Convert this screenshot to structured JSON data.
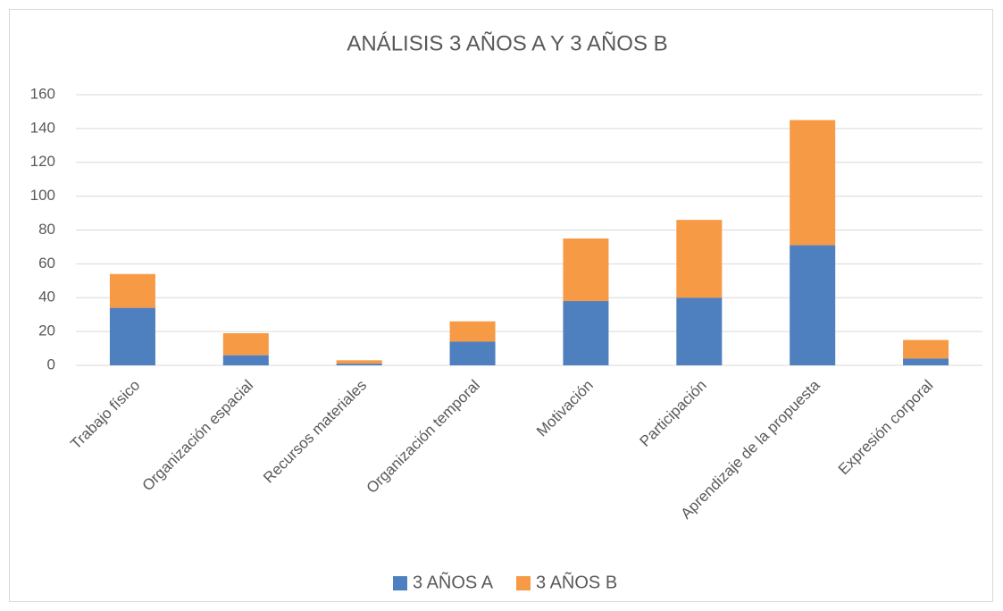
{
  "chart_data": {
    "type": "bar",
    "stacked": true,
    "title": "ANÁLISIS 3 AÑOS A Y 3 AÑOS B",
    "categories": [
      "Trabajo físico",
      "Organización espacial",
      "Recursos materiales",
      "Organización temporal",
      "Motivación",
      "Participación",
      "Aprendizaje de la propuesta",
      "Expresión corporal"
    ],
    "series": [
      {
        "name": "3 AÑOS A",
        "color": "#4e7fbf",
        "values": [
          34,
          6,
          1,
          14,
          38,
          40,
          71,
          4
        ]
      },
      {
        "name": "3 AÑOS B",
        "color": "#f79a46",
        "values": [
          20,
          13,
          2,
          12,
          37,
          46,
          74,
          11
        ]
      }
    ],
    "ylim": [
      0,
      160
    ],
    "yticks": [
      0,
      20,
      40,
      60,
      80,
      100,
      120,
      140,
      160
    ],
    "grid": true,
    "legend": "bottom"
  }
}
